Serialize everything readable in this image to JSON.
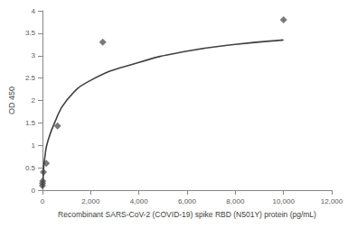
{
  "chart_data": {
    "type": "scatter",
    "x_label": "Recombinant SARS-CoV-2 (COVID-19) spike RBD (N501Y) protein (pg/mL)",
    "y_label": "OD 450",
    "series": [
      {
        "type": "scatter",
        "marker": "diamond",
        "color": "#595959",
        "x": [
          0,
          2.4,
          9.8,
          39,
          156,
          625,
          2500,
          10000
        ],
        "values": [
          0.1,
          0.15,
          0.2,
          0.4,
          0.6,
          1.43,
          3.3,
          3.8
        ]
      },
      {
        "type": "line",
        "line_style": "solid",
        "color": "#404040",
        "x": [
          5,
          20,
          50,
          100,
          200,
          500,
          1000,
          2000,
          4000,
          6000,
          8000,
          10000
        ],
        "values": [
          0.05,
          0.2,
          0.5,
          0.75,
          1.05,
          1.5,
          2.0,
          2.45,
          2.85,
          3.1,
          3.25,
          3.35
        ]
      }
    ],
    "xlim": [
      0,
      12000
    ],
    "xticks": [
      0,
      2000,
      4000,
      6000,
      8000,
      10000,
      12000
    ],
    "ylim": [
      0,
      4
    ],
    "yticks": [
      0,
      0.5,
      1,
      1.5,
      2,
      2.5,
      3,
      3.5,
      4
    ],
    "grid": false
  }
}
